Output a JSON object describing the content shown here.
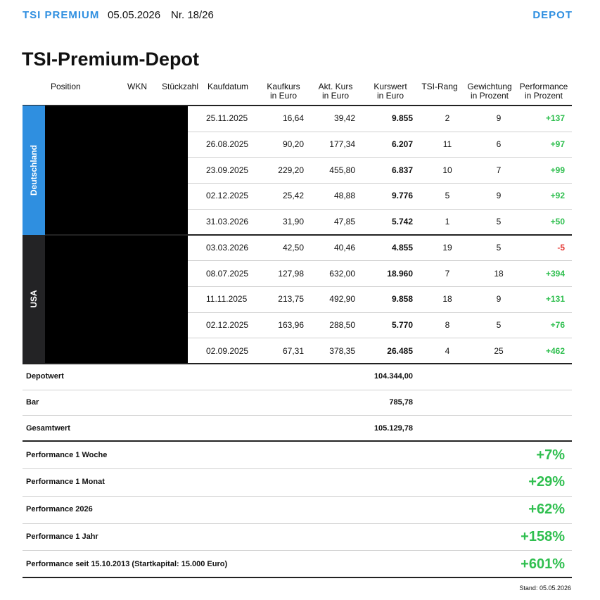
{
  "header": {
    "brand": "TSI PREMIUM",
    "date": "05.05.2026",
    "issue": "Nr. 18/26",
    "section": "DEPOT"
  },
  "title": "TSI-Premium-Depot",
  "columns": [
    [
      "Position"
    ],
    [
      "WKN"
    ],
    [
      "Stückzahl"
    ],
    [
      "Kaufdatum"
    ],
    [
      "Kaufkurs",
      "in Euro"
    ],
    [
      "Akt. Kurs",
      "in Euro"
    ],
    [
      "Kurswert",
      "in Euro"
    ],
    [
      "TSI-Rang"
    ],
    [
      "Gewichtung",
      "in Prozent"
    ],
    [
      "Performance",
      "in Prozent"
    ]
  ],
  "groups": [
    {
      "name": "Deutschland",
      "color": "#2f8fe0",
      "rows": [
        [
          "25.11.2025",
          "16,64",
          "39,42",
          "9.855",
          "2",
          "9",
          "+137"
        ],
        [
          "26.08.2025",
          "90,20",
          "177,34",
          "6.207",
          "11",
          "6",
          "+97"
        ],
        [
          "23.09.2025",
          "229,20",
          "455,80",
          "6.837",
          "10",
          "7",
          "+99"
        ],
        [
          "02.12.2025",
          "25,42",
          "48,88",
          "9.776",
          "5",
          "9",
          "+92"
        ],
        [
          "31.03.2026",
          "31,90",
          "47,85",
          "5.742",
          "1",
          "5",
          "+50"
        ]
      ]
    },
    {
      "name": "USA",
      "color": "#232325",
      "rows": [
        [
          "03.03.2026",
          "42,50",
          "40,46",
          "4.855",
          "19",
          "5",
          "-5"
        ],
        [
          "08.07.2025",
          "127,98",
          "632,00",
          "18.960",
          "7",
          "18",
          "+394"
        ],
        [
          "11.11.2025",
          "213,75",
          "492,90",
          "9.858",
          "18",
          "9",
          "+131"
        ],
        [
          "02.12.2025",
          "163,96",
          "288,50",
          "5.770",
          "8",
          "5",
          "+76"
        ],
        [
          "02.09.2025",
          "67,31",
          "378,35",
          "26.485",
          "4",
          "25",
          "+462"
        ]
      ]
    }
  ],
  "summary": [
    {
      "label": "Depotwert",
      "value": "104.344,00"
    },
    {
      "label": "Bar",
      "value": "785,78"
    },
    {
      "label": "Gesamtwert",
      "value": "105.129,78"
    }
  ],
  "performance": [
    {
      "label": "Performance 1 Woche",
      "value": "+7%"
    },
    {
      "label": "Performance 1 Monat",
      "value": "+29%"
    },
    {
      "label": "Performance 2026",
      "value": "+62%"
    },
    {
      "label": "Performance 1 Jahr",
      "value": "+158%"
    },
    {
      "label": "Performance seit 15.10.2013 (Startkapital: 15.000 Euro)",
      "value": "+601%"
    }
  ],
  "footer": "Stand: 05.05.2026"
}
